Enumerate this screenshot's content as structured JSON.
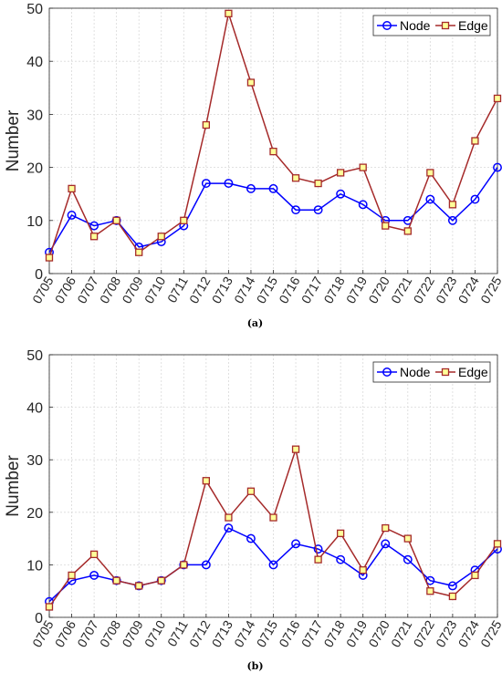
{
  "chart_data": [
    {
      "type": "line",
      "caption": "(a)",
      "ylabel": "Number",
      "ylim": [
        0,
        50
      ],
      "yticks": [
        0,
        10,
        20,
        30,
        40,
        50
      ],
      "grid": true,
      "legend_position": "top-right",
      "categories": [
        "0705",
        "0706",
        "0707",
        "0708",
        "0709",
        "0710",
        "0711",
        "0712",
        "0713",
        "0714",
        "0715",
        "0716",
        "0717",
        "0718",
        "0719",
        "0720",
        "0721",
        "0722",
        "0723",
        "0724",
        "0725"
      ],
      "series": [
        {
          "name": "Node",
          "color": "#0000ff",
          "marker": "circle",
          "values": [
            4,
            11,
            9,
            10,
            5,
            6,
            9,
            17,
            17,
            16,
            16,
            12,
            12,
            15,
            13,
            10,
            10,
            14,
            10,
            14,
            20
          ]
        },
        {
          "name": "Edge",
          "color": "#a52a2a",
          "marker": "square",
          "values": [
            3,
            16,
            7,
            10,
            4,
            7,
            10,
            28,
            49,
            36,
            23,
            18,
            17,
            19,
            20,
            9,
            8,
            19,
            13,
            25,
            33
          ]
        }
      ]
    },
    {
      "type": "line",
      "caption": "(b)",
      "ylabel": "Number",
      "ylim": [
        0,
        50
      ],
      "yticks": [
        0,
        10,
        20,
        30,
        40,
        50
      ],
      "grid": true,
      "legend_position": "top-right",
      "categories": [
        "0705",
        "0706",
        "0707",
        "0708",
        "0709",
        "0710",
        "0711",
        "0712",
        "0713",
        "0714",
        "0715",
        "0716",
        "0717",
        "0718",
        "0719",
        "0720",
        "0721",
        "0722",
        "0723",
        "0724",
        "0725"
      ],
      "series": [
        {
          "name": "Node",
          "color": "#0000ff",
          "marker": "circle",
          "values": [
            3,
            7,
            8,
            7,
            6,
            7,
            10,
            10,
            17,
            15,
            10,
            14,
            13,
            11,
            8,
            14,
            11,
            7,
            6,
            9,
            13
          ]
        },
        {
          "name": "Edge",
          "color": "#a52a2a",
          "marker": "square",
          "values": [
            2,
            8,
            12,
            7,
            6,
            7,
            10,
            26,
            19,
            24,
            19,
            32,
            11,
            16,
            9,
            17,
            15,
            5,
            4,
            8,
            14
          ]
        }
      ]
    }
  ]
}
